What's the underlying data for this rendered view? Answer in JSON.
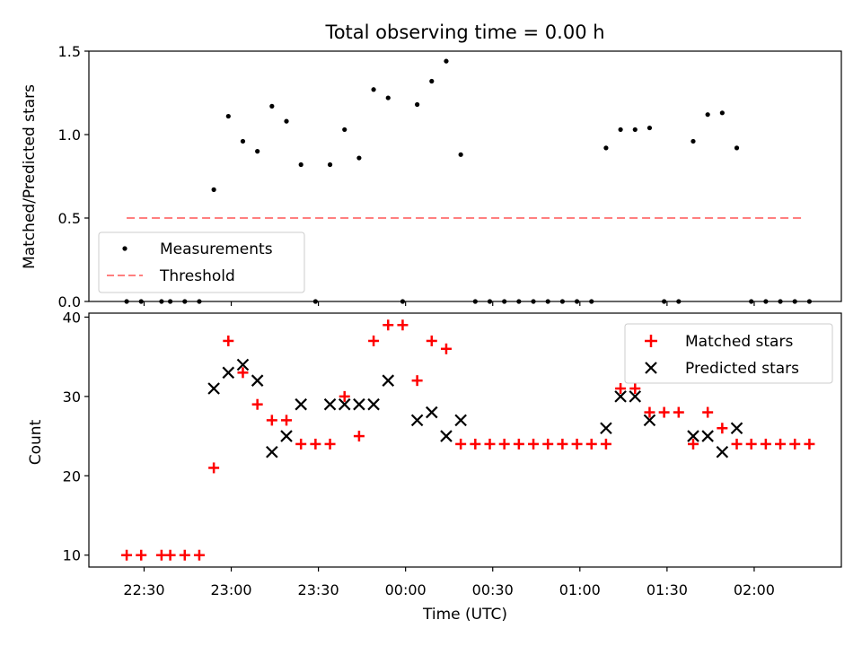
{
  "chart_data": [
    {
      "type": "scatter",
      "title": "Total observing time = 0.00 h",
      "ylabel": "Matched/Predicted stars",
      "xlabel": "",
      "xlim": [
        "22:11",
        "02:30"
      ],
      "ylim": [
        0,
        1.5
      ],
      "yticks": [
        "0.0",
        "0.5",
        "1.0",
        "1.5"
      ],
      "grid": false,
      "legend": "lower-left",
      "series": [
        {
          "name": "Measurements",
          "marker": "dot",
          "color": "#000000",
          "points": [
            [
              "22:24",
              0
            ],
            [
              "22:29",
              0
            ],
            [
              "22:36",
              0
            ],
            [
              "22:39",
              0
            ],
            [
              "22:44",
              0
            ],
            [
              "22:49",
              0
            ],
            [
              "22:54",
              0.67
            ],
            [
              "22:59",
              1.11
            ],
            [
              "23:04",
              0.96
            ],
            [
              "23:09",
              0.9
            ],
            [
              "23:14",
              1.17
            ],
            [
              "23:19",
              1.08
            ],
            [
              "23:24",
              0.82
            ],
            [
              "23:29",
              0
            ],
            [
              "23:34",
              0.82
            ],
            [
              "23:39",
              1.03
            ],
            [
              "23:44",
              0.86
            ],
            [
              "23:49",
              1.27
            ],
            [
              "23:54",
              1.22
            ],
            [
              "23:59",
              0
            ],
            [
              "00:04",
              1.18
            ],
            [
              "00:09",
              1.32
            ],
            [
              "00:14",
              1.44
            ],
            [
              "00:19",
              0.88
            ],
            [
              "00:24",
              0
            ],
            [
              "00:29",
              0
            ],
            [
              "00:34",
              0
            ],
            [
              "00:39",
              0
            ],
            [
              "00:44",
              0
            ],
            [
              "00:49",
              0
            ],
            [
              "00:54",
              0
            ],
            [
              "00:59",
              0
            ],
            [
              "01:04",
              0
            ],
            [
              "01:09",
              0.92
            ],
            [
              "01:14",
              1.03
            ],
            [
              "01:19",
              1.03
            ],
            [
              "01:24",
              1.04
            ],
            [
              "01:29",
              0
            ],
            [
              "01:34",
              0
            ],
            [
              "01:39",
              0.96
            ],
            [
              "01:44",
              1.12
            ],
            [
              "01:49",
              1.13
            ],
            [
              "01:54",
              0.92
            ],
            [
              "01:59",
              0
            ],
            [
              "02:04",
              0
            ],
            [
              "02:09",
              0
            ],
            [
              "02:14",
              0
            ],
            [
              "02:19",
              0
            ]
          ]
        },
        {
          "name": "Threshold",
          "marker": "dashed-line",
          "color": "#ff7f7f",
          "points": [
            [
              "22:24",
              0.5
            ],
            [
              "02:17",
              0.5
            ]
          ]
        }
      ]
    },
    {
      "type": "scatter",
      "title": "",
      "xlabel": "Time (UTC)",
      "ylabel": "Count",
      "xlim": [
        "22:11",
        "02:30"
      ],
      "ylim": [
        8.5,
        40.5
      ],
      "yticks": [
        "10",
        "20",
        "30",
        "40"
      ],
      "xticks": [
        "22:30",
        "23:00",
        "23:30",
        "00:00",
        "00:30",
        "01:00",
        "01:30",
        "02:00"
      ],
      "grid": false,
      "legend": "upper-right",
      "series": [
        {
          "name": "Matched stars",
          "marker": "plus",
          "color": "#ff0000",
          "points": [
            [
              "22:24",
              10
            ],
            [
              "22:29",
              10
            ],
            [
              "22:36",
              10
            ],
            [
              "22:39",
              10
            ],
            [
              "22:44",
              10
            ],
            [
              "22:49",
              10
            ],
            [
              "22:54",
              21
            ],
            [
              "22:59",
              37
            ],
            [
              "23:04",
              33
            ],
            [
              "23:09",
              29
            ],
            [
              "23:14",
              27
            ],
            [
              "23:19",
              27
            ],
            [
              "23:24",
              24
            ],
            [
              "23:29",
              24
            ],
            [
              "23:34",
              24
            ],
            [
              "23:39",
              30
            ],
            [
              "23:44",
              25
            ],
            [
              "23:49",
              37
            ],
            [
              "23:54",
              39
            ],
            [
              "23:59",
              39
            ],
            [
              "00:04",
              32
            ],
            [
              "00:09",
              37
            ],
            [
              "00:14",
              36
            ],
            [
              "00:19",
              24
            ],
            [
              "00:24",
              24
            ],
            [
              "00:29",
              24
            ],
            [
              "00:34",
              24
            ],
            [
              "00:39",
              24
            ],
            [
              "00:44",
              24
            ],
            [
              "00:49",
              24
            ],
            [
              "00:54",
              24
            ],
            [
              "00:59",
              24
            ],
            [
              "01:04",
              24
            ],
            [
              "01:09",
              24
            ],
            [
              "01:14",
              31
            ],
            [
              "01:19",
              31
            ],
            [
              "01:24",
              28
            ],
            [
              "01:29",
              28
            ],
            [
              "01:34",
              28
            ],
            [
              "01:39",
              24
            ],
            [
              "01:44",
              28
            ],
            [
              "01:49",
              26
            ],
            [
              "01:54",
              24
            ],
            [
              "01:59",
              24
            ],
            [
              "02:04",
              24
            ],
            [
              "02:09",
              24
            ],
            [
              "02:14",
              24
            ],
            [
              "02:19",
              24
            ]
          ]
        },
        {
          "name": "Predicted stars",
          "marker": "x",
          "color": "#000000",
          "points": [
            [
              "22:54",
              31
            ],
            [
              "22:59",
              33
            ],
            [
              "23:04",
              34
            ],
            [
              "23:09",
              32
            ],
            [
              "23:14",
              23
            ],
            [
              "23:19",
              25
            ],
            [
              "23:24",
              29
            ],
            [
              "23:34",
              29
            ],
            [
              "23:39",
              29
            ],
            [
              "23:44",
              29
            ],
            [
              "23:49",
              29
            ],
            [
              "23:54",
              32
            ],
            [
              "00:04",
              27
            ],
            [
              "00:09",
              28
            ],
            [
              "00:14",
              25
            ],
            [
              "00:19",
              27
            ],
            [
              "01:09",
              26
            ],
            [
              "01:14",
              30
            ],
            [
              "01:19",
              30
            ],
            [
              "01:24",
              27
            ],
            [
              "01:39",
              25
            ],
            [
              "01:44",
              25
            ],
            [
              "01:49",
              23
            ],
            [
              "01:54",
              26
            ]
          ]
        }
      ]
    }
  ]
}
